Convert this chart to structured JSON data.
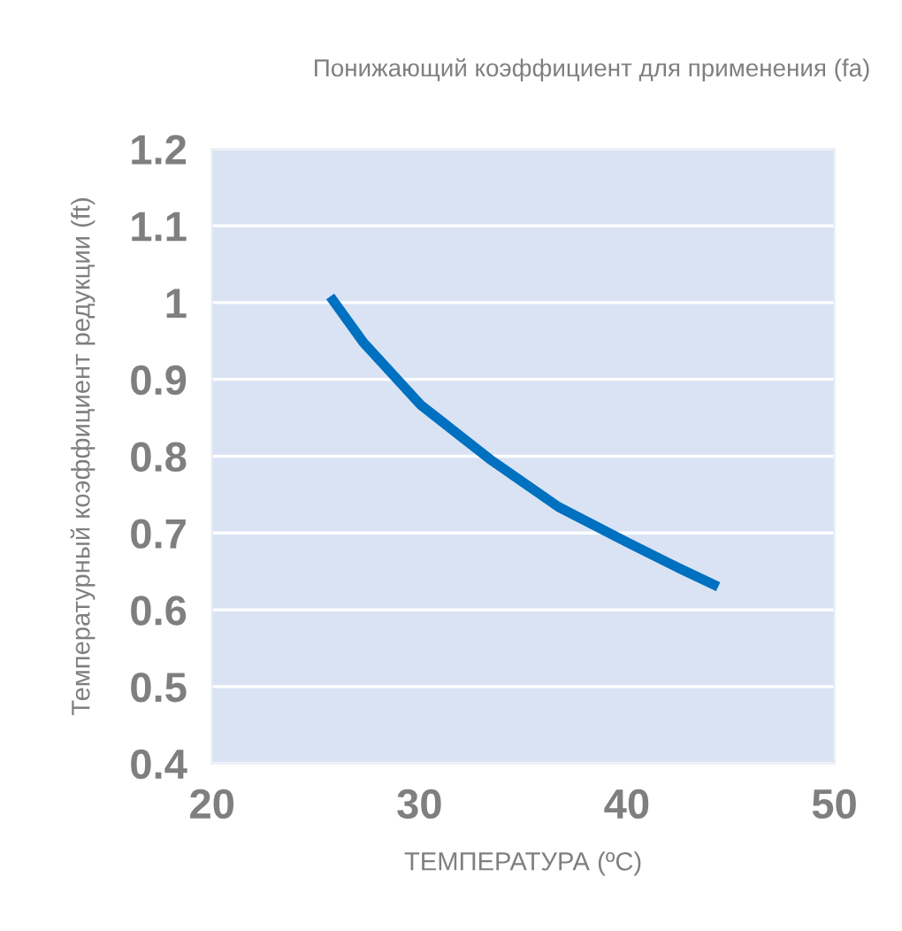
{
  "chart_data": {
    "type": "line",
    "title": "Понижающий коэффициент для применения (fa)",
    "xlabel": "ТЕМПЕРАТУРА (ºC)",
    "ylabel": "Температурный коэффициент редукции (ft)",
    "series": [
      {
        "color": "#0070c0",
        "x": [
          25.7,
          27.3,
          30.05,
          33.4,
          36.7,
          40,
          42.6,
          44.4
        ],
        "values": [
          1.008,
          0.948,
          0.867,
          0.796,
          0.734,
          0.688,
          0.653,
          0.63
        ]
      }
    ],
    "xlim": [
      20,
      50
    ],
    "xticks": [
      20,
      30,
      40,
      50
    ],
    "ylim": [
      0.4,
      1.2
    ],
    "yticks": [
      0.4,
      0.5,
      0.6,
      0.7,
      0.8,
      0.9,
      1,
      1.1,
      1.2
    ],
    "grid": "y",
    "line_style": "solid",
    "marker": "none"
  }
}
